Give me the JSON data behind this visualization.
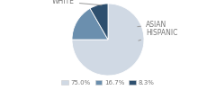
{
  "labels": [
    "WHITE",
    "HISPANIC",
    "ASIAN"
  ],
  "values": [
    75.0,
    16.7,
    8.3
  ],
  "colors": [
    "#d0d9e4",
    "#6b8fae",
    "#2d4f6e"
  ],
  "legend_labels": [
    "75.0%",
    "16.7%",
    "8.3%"
  ],
  "startangle": 90,
  "background_color": "#ffffff",
  "label_color": "#777777",
  "line_color": "#999999",
  "label_fontsize": 5.5
}
